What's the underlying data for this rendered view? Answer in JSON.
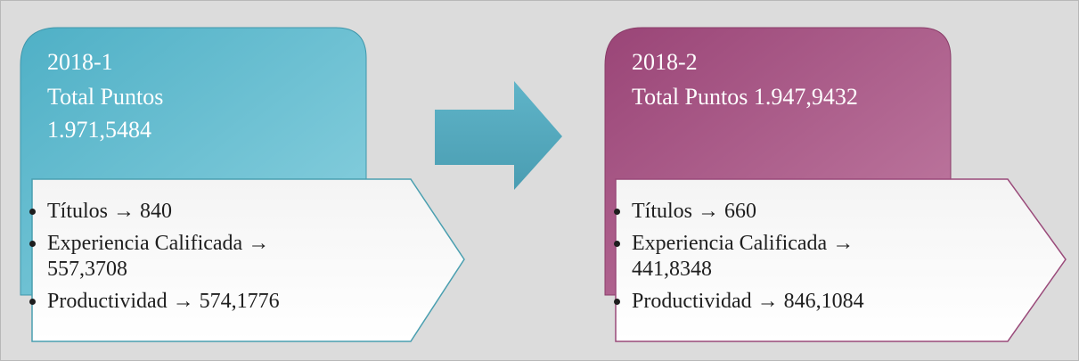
{
  "panels": [
    {
      "period": "2018-1",
      "total": "Total Puntos 1.971,5484",
      "items": [
        "Títulos → 840",
        "Experiencia Calificada → 557,3708",
        "Productividad → 574,1776"
      ]
    },
    {
      "period": "2018-2",
      "total": "Total Puntos 1.947,9432",
      "items": [
        "Títulos → 660",
        "Experiencia Calificada → 441,8348",
        "Productividad → 846,1084"
      ]
    }
  ]
}
